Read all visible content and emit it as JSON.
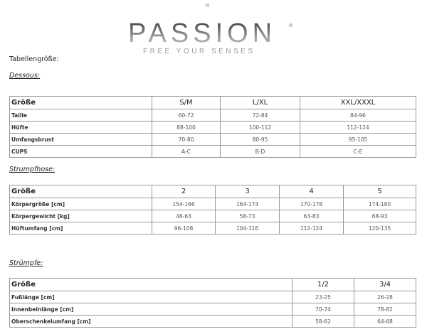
{
  "logo": {
    "brand": "PASSION",
    "tagline": "FREE YOUR SENSES",
    "registered": "®"
  },
  "heading": "Tabellengröße:",
  "dessous": {
    "title": "Dessous:",
    "header": [
      "Größe",
      "S/M",
      "L/XL",
      "XXL/XXXL"
    ],
    "rows": [
      [
        "Taille",
        "60-72",
        "72-84",
        "84-96"
      ],
      [
        "Hüfte",
        "88-100",
        "100-112",
        "112-124"
      ],
      [
        "Umfangsbrust",
        "70-80",
        "80-95",
        "95-105"
      ],
      [
        "CUPS",
        "A-C",
        "B-D",
        "C-E"
      ]
    ]
  },
  "strumpfhose": {
    "title": "Strumpfhose:",
    "header": [
      "Größe",
      "2",
      "3",
      "4",
      "5"
    ],
    "rows": [
      [
        "Körpergröße [cm]",
        "154-166",
        "164-174",
        "170-178",
        "174-180"
      ],
      [
        "Körpergewicht [kg]",
        "48-63",
        "58-73",
        "63-83",
        "68-93"
      ],
      [
        "Hüftumfang [cm]",
        "96-108",
        "104-116",
        "112-124",
        "120-135"
      ]
    ]
  },
  "struempfe": {
    "title": "Strümpfe:",
    "header": [
      "Größe",
      "1/2",
      "3/4"
    ],
    "rows": [
      [
        "Fußlänge [cm]",
        "23-25",
        "26-28"
      ],
      [
        "Innenbeinlänge [cm]",
        "70-74",
        "78-82"
      ],
      [
        "Oberschenkelumfang [cm]",
        "58-62",
        "64-68"
      ]
    ]
  }
}
